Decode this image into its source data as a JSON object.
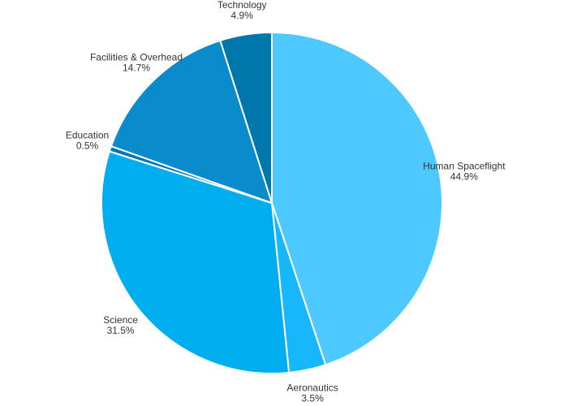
{
  "chart_data": {
    "type": "pie",
    "title": "",
    "categories": [
      "Human Spaceflight",
      "Aeronautics",
      "Science",
      "Education",
      "Facilities & Overhead",
      "Technology"
    ],
    "values": [
      44.9,
      3.5,
      31.5,
      0.5,
      14.7,
      4.9
    ],
    "value_labels": [
      "44.9%",
      "3.5%",
      "31.5%",
      "0.5%",
      "14.7%",
      "4.9%"
    ],
    "colors": [
      "#4dc9ff",
      "#16b8fb",
      "#00aeef",
      "#0077b3",
      "#0a8ccc",
      "#0077aa"
    ],
    "start_angle": "12 o'clock",
    "direction": "clockwise",
    "legend": "none (labels beside slices)"
  }
}
